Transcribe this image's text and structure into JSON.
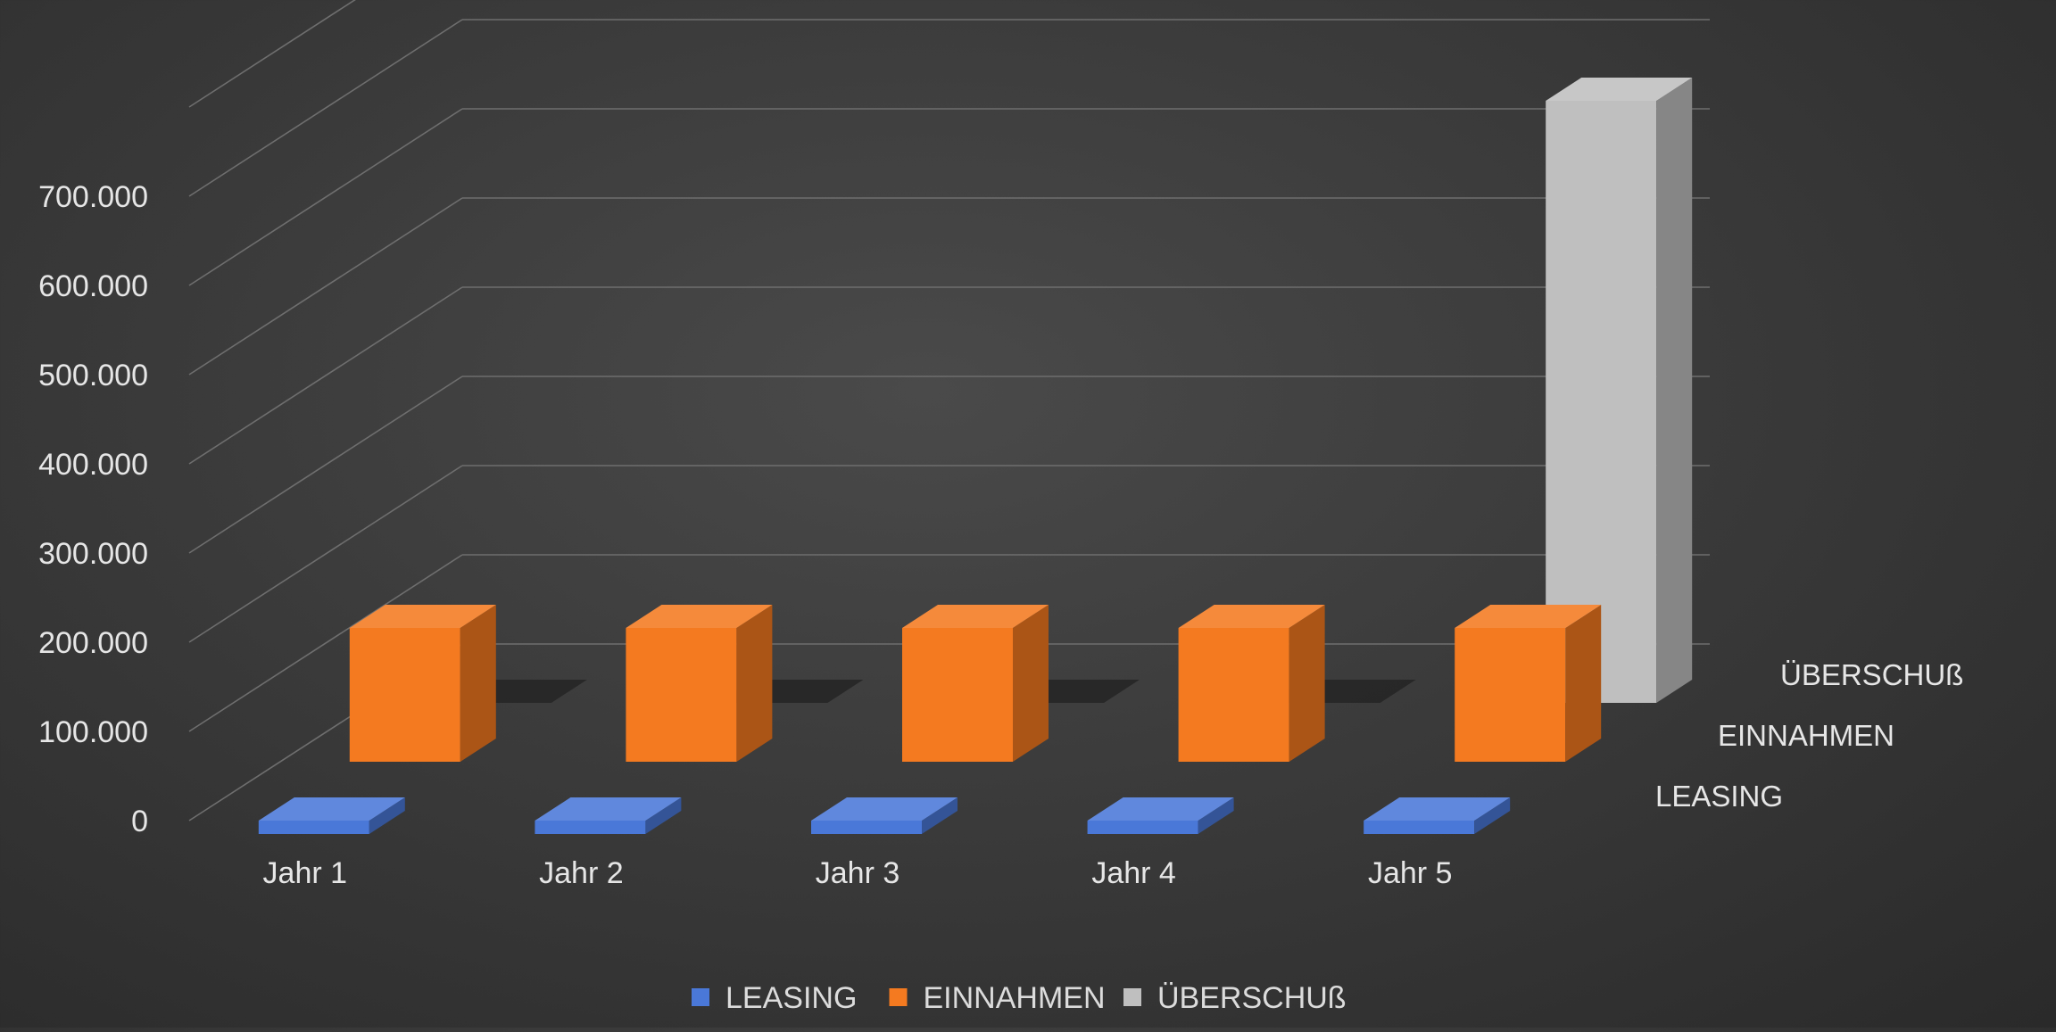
{
  "chart_data": {
    "type": "bar",
    "variant": "3d-column",
    "categories": [
      "Jahr 1",
      "Jahr 2",
      "Jahr 3",
      "Jahr 4",
      "Jahr 5"
    ],
    "series": [
      {
        "name": "LEASING",
        "color": "#4a78d8",
        "values": [
          -15000,
          -15000,
          -15000,
          -15000,
          -15000
        ]
      },
      {
        "name": "EINNAHMEN",
        "color": "#f47a20",
        "values": [
          150000,
          150000,
          150000,
          150000,
          150000
        ]
      },
      {
        "name": "ÜBERSCHUß",
        "color": "#bfbfbf",
        "values": [
          0,
          0,
          0,
          0,
          675000
        ]
      }
    ],
    "y_ticks": [
      "0",
      "100.000",
      "200.000",
      "300.000",
      "400.000",
      "500.000",
      "600.000",
      "700.000"
    ],
    "ylim": [
      0,
      800000
    ],
    "grid": true,
    "legend": "bottom",
    "title": "",
    "xlabel": "",
    "ylabel": ""
  }
}
